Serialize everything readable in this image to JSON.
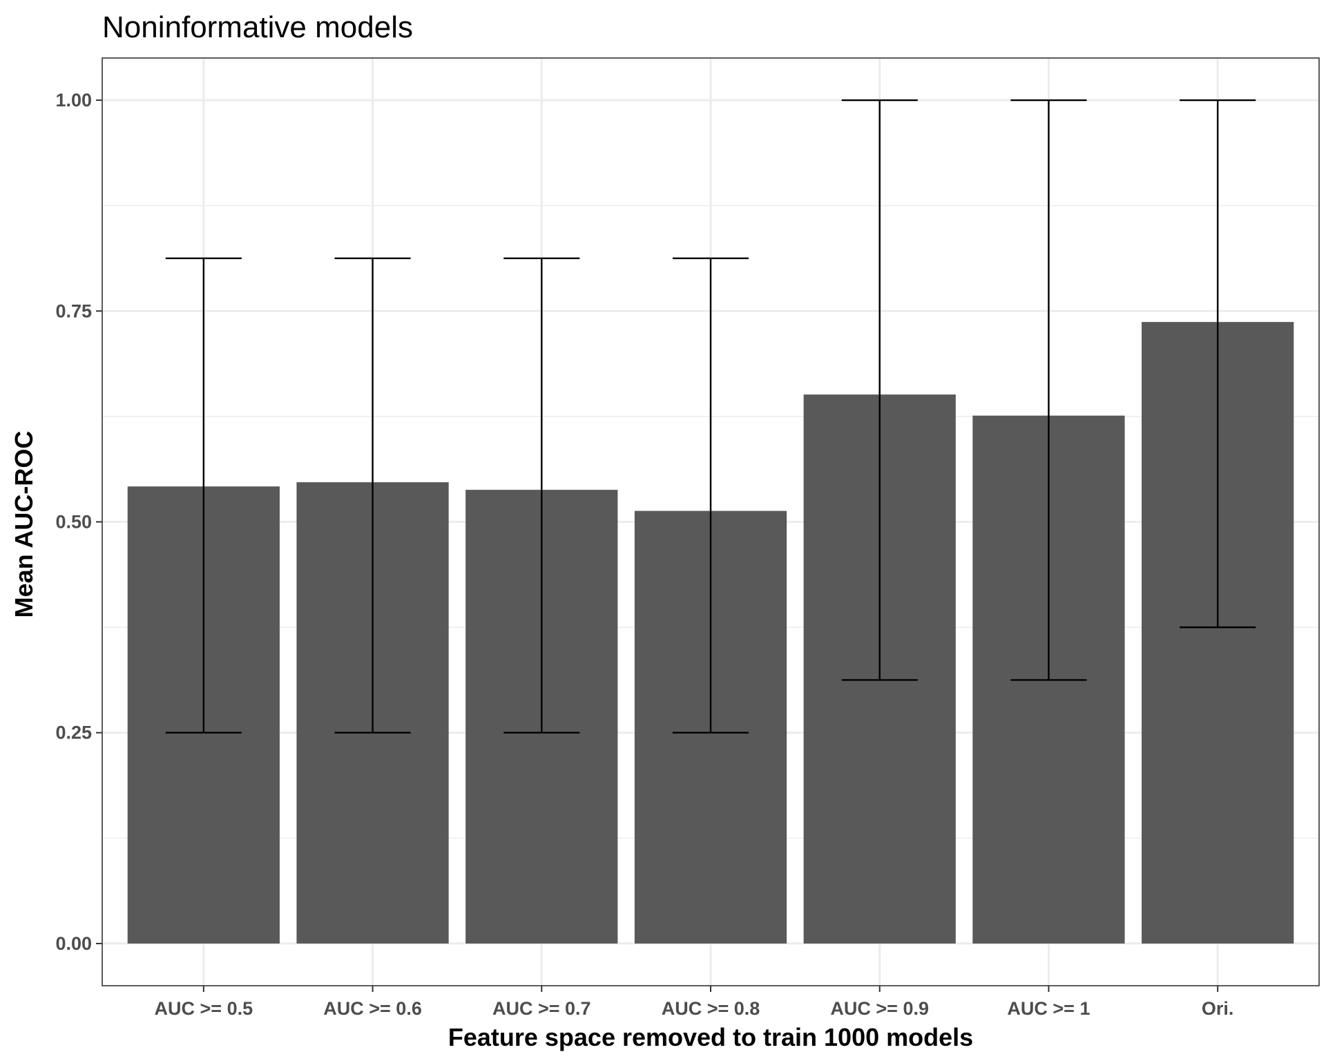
{
  "chart_data": {
    "type": "bar",
    "title": "Noninformative models",
    "xlabel": "Feature space removed to train 1000 models",
    "ylabel": "Mean AUC-ROC",
    "categories": [
      "AUC >= 0.5",
      "AUC >= 0.6",
      "AUC >= 0.7",
      "AUC >= 0.8",
      "AUC >= 0.9",
      "AUC >= 1",
      "Ori."
    ],
    "values": [
      0.542,
      0.547,
      0.538,
      0.513,
      0.651,
      0.626,
      0.737
    ],
    "error_lower": [
      0.25,
      0.25,
      0.25,
      0.25,
      0.3125,
      0.3125,
      0.375
    ],
    "error_upper": [
      0.8125,
      0.8125,
      0.8125,
      0.8125,
      1.0,
      1.0,
      1.0
    ],
    "ylim": [
      -0.05,
      1.05
    ],
    "yticks": [
      0.0,
      0.25,
      0.5,
      0.75,
      1.0
    ],
    "ytick_labels": [
      "0.00",
      "0.25",
      "0.50",
      "0.75",
      "1.00"
    ],
    "grid": true,
    "bar_color": "#595959",
    "errorbar_color": "#000000",
    "gridline_color": "#ebebeb",
    "panel_border_color": "#333333",
    "tick_label_color": "#4d4d4d"
  }
}
